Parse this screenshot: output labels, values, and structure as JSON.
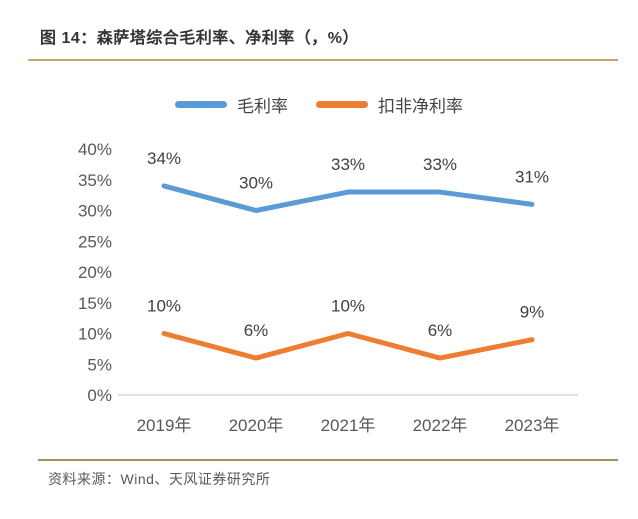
{
  "header": {
    "title": "图 14：森萨塔综合毛利率、净利率（，%）"
  },
  "footer": {
    "source": "资料来源：Wind、天风证券研究所"
  },
  "colors": {
    "title_text": "#333333",
    "top_rule": "#C9A368",
    "bottom_rule": "#A5905A",
    "axis_line": "#D9D9D9",
    "tick_text": "#595959",
    "data_label_text": "#404040"
  },
  "chart_data": {
    "type": "line",
    "title": "森萨塔综合毛利率、净利率",
    "categories": [
      "2019年",
      "2020年",
      "2021年",
      "2022年",
      "2023年"
    ],
    "series": [
      {
        "name": "毛利率",
        "color": "#5B9BD5",
        "values": [
          34,
          30,
          33,
          33,
          31
        ],
        "data_labels": [
          "34%",
          "30%",
          "33%",
          "33%",
          "31%"
        ]
      },
      {
        "name": "扣非净利率",
        "color": "#ED7D31",
        "values": [
          10,
          6,
          10,
          6,
          9
        ],
        "data_labels": [
          "10%",
          "6%",
          "10%",
          "6%",
          "9%"
        ]
      }
    ],
    "xlabel": "",
    "ylabel": "",
    "ylim": [
      0,
      40
    ],
    "ytick_step": 5,
    "ytick_labels": [
      "0%",
      "5%",
      "10%",
      "15%",
      "20%",
      "25%",
      "30%",
      "35%",
      "40%"
    ],
    "grid": false,
    "legend_position": "top"
  }
}
